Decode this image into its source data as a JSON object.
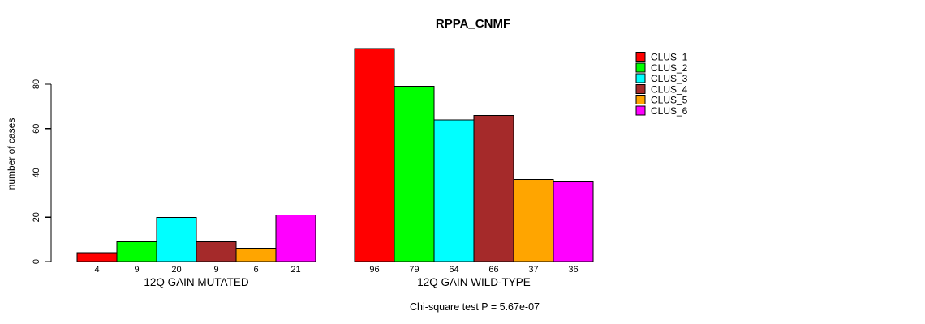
{
  "title": "RPPA_CNMF",
  "y_axis": {
    "label": "number of cases"
  },
  "footnote": "Chi-square test P = 5.67e-07",
  "chart_data": {
    "type": "bar",
    "title": "RPPA_CNMF",
    "xlabel": "",
    "ylabel": "number of cases",
    "ylim": [
      0,
      96
    ],
    "yticks": [
      0,
      20,
      40,
      60,
      80
    ],
    "grid": false,
    "legend_position": "right",
    "categories": [
      "12Q GAIN MUTATED",
      "12Q GAIN WILD-TYPE"
    ],
    "series": [
      {
        "name": "CLUS_1",
        "color": "#FF0000",
        "values": [
          4,
          96
        ]
      },
      {
        "name": "CLUS_2",
        "color": "#00FF00",
        "values": [
          9,
          79
        ]
      },
      {
        "name": "CLUS_3",
        "color": "#00FFFF",
        "values": [
          20,
          64
        ]
      },
      {
        "name": "CLUS_4",
        "color": "#A52A2A",
        "values": [
          9,
          66
        ]
      },
      {
        "name": "CLUS_5",
        "color": "#FFA500",
        "values": [
          6,
          37
        ]
      },
      {
        "name": "CLUS_6",
        "color": "#FF00FF",
        "values": [
          21,
          36
        ]
      }
    ],
    "groups": [
      {
        "label": "12Q GAIN MUTATED",
        "values": [
          4,
          9,
          20,
          9,
          6,
          21
        ]
      },
      {
        "label": "12Q GAIN WILD-TYPE",
        "values": [
          96,
          79,
          64,
          66,
          37,
          36
        ]
      }
    ],
    "bar_value_labels_shown": true,
    "footnote": "Chi-square test P = 5.67e-07"
  },
  "legend": {
    "items": [
      {
        "label": "CLUS_1",
        "color": "#FF0000"
      },
      {
        "label": "CLUS_2",
        "color": "#00FF00"
      },
      {
        "label": "CLUS_3",
        "color": "#00FFFF"
      },
      {
        "label": "CLUS_4",
        "color": "#A52A2A"
      },
      {
        "label": "CLUS_5",
        "color": "#FFA500"
      },
      {
        "label": "CLUS_6",
        "color": "#FF00FF"
      }
    ]
  }
}
